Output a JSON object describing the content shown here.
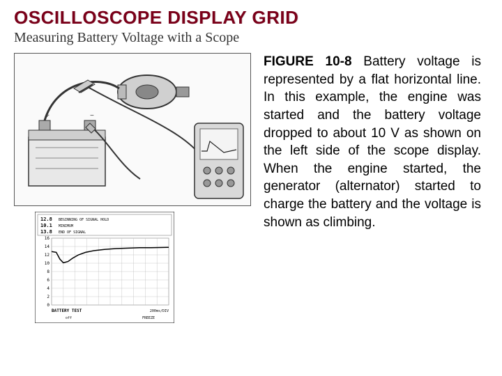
{
  "title": "OSCILLOSCOPE DISPLAY GRID",
  "subtitle": "Measuring Battery Voltage with a Scope",
  "figure": {
    "label": "FIGURE 10-8",
    "caption_rest": " Battery voltage is represented by a flat horizontal line. In this example, the engine was started and the battery voltage dropped to about 10 V as shown on the left side of the scope display. When the engine started, the generator (alternator) started to charge the battery and the voltage is shown as climbing."
  },
  "scope_plot": {
    "type": "line",
    "title_box": {
      "l1": "12.8",
      "l2": "10.1",
      "l3": "13.8",
      "r1": "BEGINNING OF SIGNAL HOLD",
      "r2": "MINIMUM",
      "r3": "END OF SIGNAL"
    },
    "x_label": "BATTERY TEST",
    "x_footer_left": "off",
    "x_footer_right": "FREEZE",
    "x_time": "200ms/DIV",
    "yticks": [
      16,
      14,
      12,
      10,
      8,
      6,
      4,
      2,
      0
    ],
    "ylim": [
      0,
      16
    ],
    "points": [
      [
        0,
        12.8
      ],
      [
        8,
        12.6
      ],
      [
        14,
        11.0
      ],
      [
        20,
        10.1
      ],
      [
        28,
        10.4
      ],
      [
        36,
        11.2
      ],
      [
        46,
        12.0
      ],
      [
        58,
        12.6
      ],
      [
        72,
        13.0
      ],
      [
        90,
        13.3
      ],
      [
        110,
        13.5
      ],
      [
        130,
        13.6
      ],
      [
        150,
        13.7
      ],
      [
        170,
        13.7
      ],
      [
        200,
        13.8
      ]
    ],
    "line_color": "#000000",
    "grid_color": "#bbbbbb",
    "line_width": 1.5,
    "background": "#ffffff"
  },
  "colors": {
    "title": "#7a0019",
    "subtitle": "#333333",
    "text": "#000000",
    "border": "#555555"
  }
}
